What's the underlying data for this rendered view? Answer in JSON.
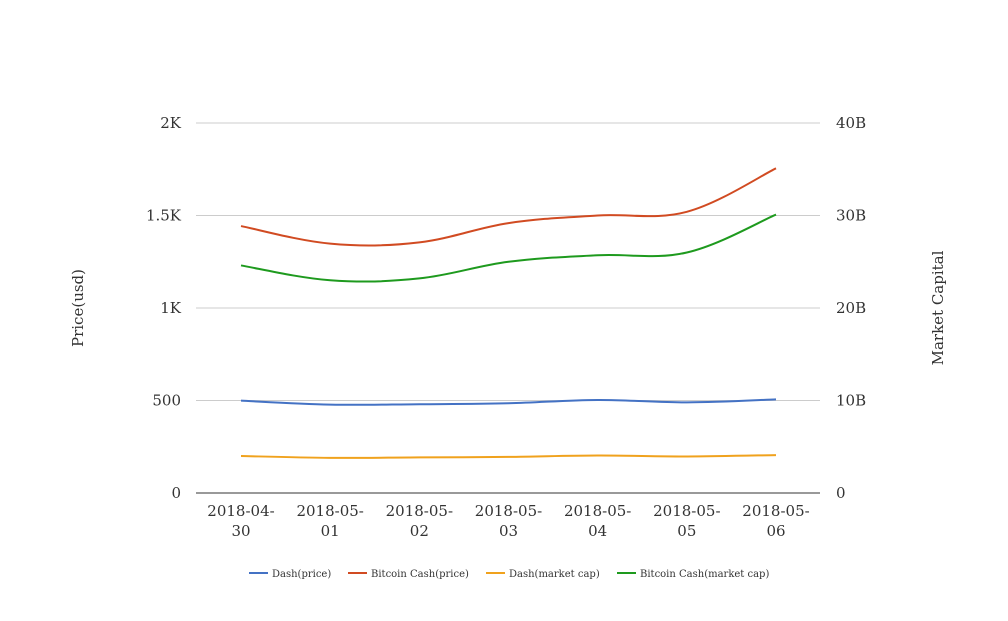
{
  "chart_data": {
    "type": "line",
    "title": "",
    "xlabel": "",
    "ylabel": "Price(usd)",
    "ylabel_right": "Market Capital",
    "categories": [
      [
        "2018-04-",
        "30"
      ],
      [
        "2018-05-",
        "01"
      ],
      [
        "2018-05-",
        "02"
      ],
      [
        "2018-05-",
        "03"
      ],
      [
        "2018-05-",
        "04"
      ],
      [
        "2018-05-",
        "05"
      ],
      [
        "2018-05-",
        "06"
      ]
    ],
    "y_left": {
      "ylim": [
        0,
        2000
      ],
      "ticks": [
        0,
        500,
        1000,
        1500,
        2000
      ],
      "tick_labels": [
        "0",
        "500",
        "1K",
        "1.5K",
        "2K"
      ]
    },
    "y_right": {
      "ylim": [
        0,
        40000000000
      ],
      "ticks": [
        0,
        10000000000,
        20000000000,
        30000000000,
        40000000000
      ],
      "tick_labels": [
        "0",
        "10B",
        "20B",
        "30B",
        "40B"
      ]
    },
    "grid": true,
    "legend_position": "bottom",
    "series": [
      {
        "name": "Dash(price)",
        "axis": "left",
        "color": "#4472c4",
        "values": [
          499,
          478,
          480,
          485,
          503,
          490,
          506
        ]
      },
      {
        "name": "Bitcoin Cash(price)",
        "axis": "left",
        "color": "#d14b22",
        "values": [
          1443,
          1348,
          1355,
          1459,
          1500,
          1520,
          1755
        ]
      },
      {
        "name": "Dash(market cap)",
        "axis": "right",
        "color": "#f0a21d",
        "values": [
          4000000000,
          3800000000,
          3850000000,
          3900000000,
          4050000000,
          3950000000,
          4100000000
        ]
      },
      {
        "name": "Bitcoin Cash(market cap)",
        "axis": "right",
        "color": "#1e9a1e",
        "values": [
          24600000000,
          23000000000,
          23200000000,
          25000000000,
          25700000000,
          26000000000,
          30100000000
        ]
      }
    ]
  }
}
